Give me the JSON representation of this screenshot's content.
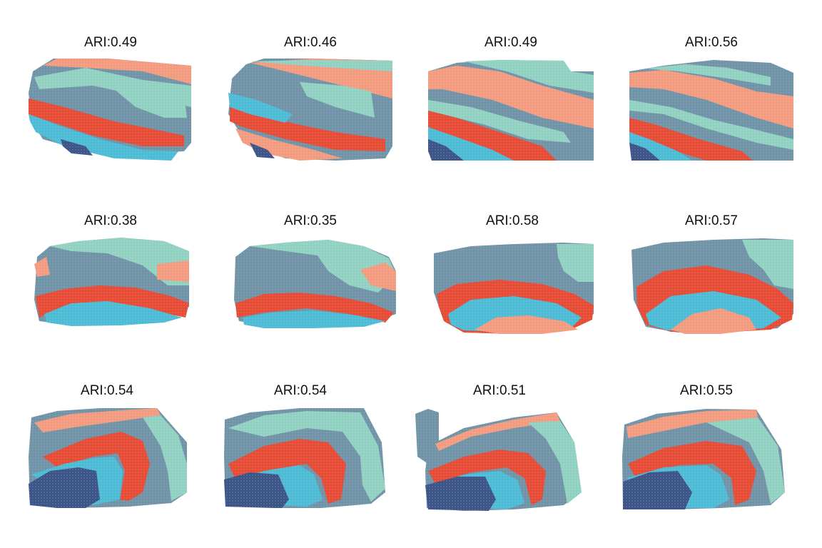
{
  "chart_data": {
    "type": "spatial-cluster-grid",
    "layout": {
      "rows": 3,
      "cols": 4
    },
    "cluster_colors": [
      "#F39B7F",
      "#91D1C2",
      "#7093A7",
      "#E64B35",
      "#4DBBD5",
      "#3C5488",
      "#8491B4"
    ],
    "panels": [
      {
        "title": "ARI:0.49",
        "ari": 0.49
      },
      {
        "title": "ARI:0.46",
        "ari": 0.46
      },
      {
        "title": "ARI:0.49",
        "ari": 0.49
      },
      {
        "title": "ARI:0.56",
        "ari": 0.56
      },
      {
        "title": "ARI:0.38",
        "ari": 0.38
      },
      {
        "title": "ARI:0.35",
        "ari": 0.35
      },
      {
        "title": "ARI:0.58",
        "ari": 0.58
      },
      {
        "title": "ARI:0.57",
        "ari": 0.57
      },
      {
        "title": "ARI:0.54",
        "ari": 0.54
      },
      {
        "title": "ARI:0.54",
        "ari": 0.54
      },
      {
        "title": "ARI:0.51",
        "ari": 0.51
      },
      {
        "title": "ARI:0.55",
        "ari": 0.55
      }
    ]
  }
}
